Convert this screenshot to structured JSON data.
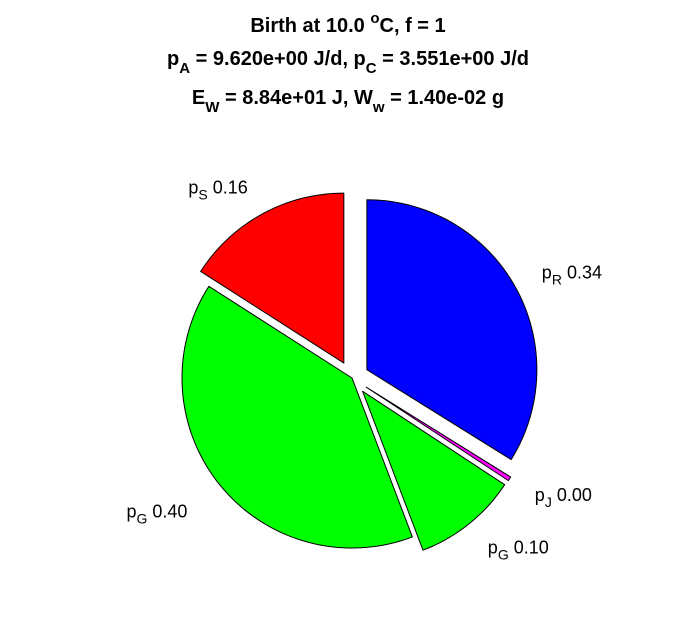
{
  "chart_data": {
    "type": "pie",
    "title": [
      {
        "parts": [
          {
            "t": "Birth at 10.0 "
          },
          {
            "t": "o",
            "sup": true
          },
          {
            "t": "C, f = 1"
          }
        ]
      },
      {
        "parts": [
          {
            "t": "p"
          },
          {
            "t": "A",
            "sub": true
          },
          {
            "t": " = 9.620e+00 J/d, p"
          },
          {
            "t": "C",
            "sub": true
          },
          {
            "t": " = 3.551e+00 J/d"
          }
        ]
      },
      {
        "parts": [
          {
            "t": "E"
          },
          {
            "t": "W",
            "sub": true
          },
          {
            "t": " = 8.84e+01 J, W"
          },
          {
            "t": "w",
            "sub": true
          },
          {
            "t": " = 1.40e-02 g"
          }
        ]
      }
    ],
    "slices": [
      {
        "symbol": "p",
        "subscript": "R",
        "value": 0.34,
        "label": "0.34",
        "color": "#0000ff",
        "exploded": true
      },
      {
        "symbol": "p",
        "subscript": "J",
        "value": 0.004,
        "label": "0.00",
        "color": "#ff00ff",
        "exploded": true
      },
      {
        "symbol": "p",
        "subscript": "G",
        "value": 0.1,
        "label": "0.10",
        "color": "#00ff00",
        "exploded": true
      },
      {
        "symbol": "p",
        "subscript": "G",
        "value": 0.4,
        "label": "0.40",
        "color": "#00ff00",
        "exploded": false
      },
      {
        "symbol": "p",
        "subscript": "S",
        "value": 0.16,
        "label": "0.16",
        "color": "#ff0000",
        "exploded": true
      }
    ],
    "start_angle_deg": 90,
    "direction": "clockwise",
    "legend": "none"
  }
}
